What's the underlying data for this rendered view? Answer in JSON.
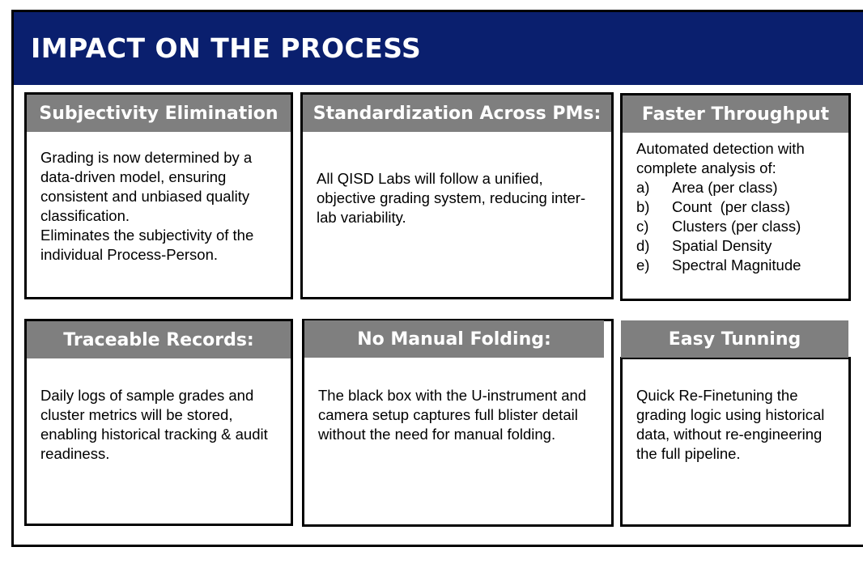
{
  "header": {
    "title": "IMPACT ON THE PROCESS"
  },
  "cards": [
    {
      "title": "Subjectivity Elimination",
      "paragraphs": [
        "Grading is now determined by a data-driven model, ensuring consistent and unbiased quality classification.",
        "Eliminates the subjectivity of the individual Process-Person."
      ]
    },
    {
      "title": "Standardization Across PMs:",
      "paragraphs": [
        "All QISD Labs will follow a unified, objective grading system, reducing inter-lab variability."
      ]
    },
    {
      "title": "Faster Throughput",
      "intro": "Automated detection with complete analysis of:",
      "items": [
        {
          "marker": "a)",
          "text": "Area (per class)"
        },
        {
          "marker": "b)",
          "text": "Count  (per class)"
        },
        {
          "marker": "c)",
          "text": "Clusters (per class)"
        },
        {
          "marker": "d)",
          "text": "Spatial Density"
        },
        {
          "marker": "e)",
          "text": "Spectral Magnitude"
        }
      ]
    },
    {
      "title": "Traceable Records:",
      "paragraphs": [
        "Daily logs of sample grades and cluster metrics will be stored, enabling historical tracking & audit readiness."
      ]
    },
    {
      "title": "No Manual Folding:",
      "paragraphs": [
        "The black box with the U-instrument and camera setup captures full blister detail without the need for manual folding."
      ]
    },
    {
      "title": "Easy Tunning",
      "paragraphs": [
        "Quick Re-Finetuning the grading logic using historical data, without re-engineering the full pipeline."
      ]
    }
  ],
  "colors": {
    "header_bg": "#0a1f6e",
    "title_bg": "#7f7f7f",
    "title_text": "#ffffff"
  }
}
